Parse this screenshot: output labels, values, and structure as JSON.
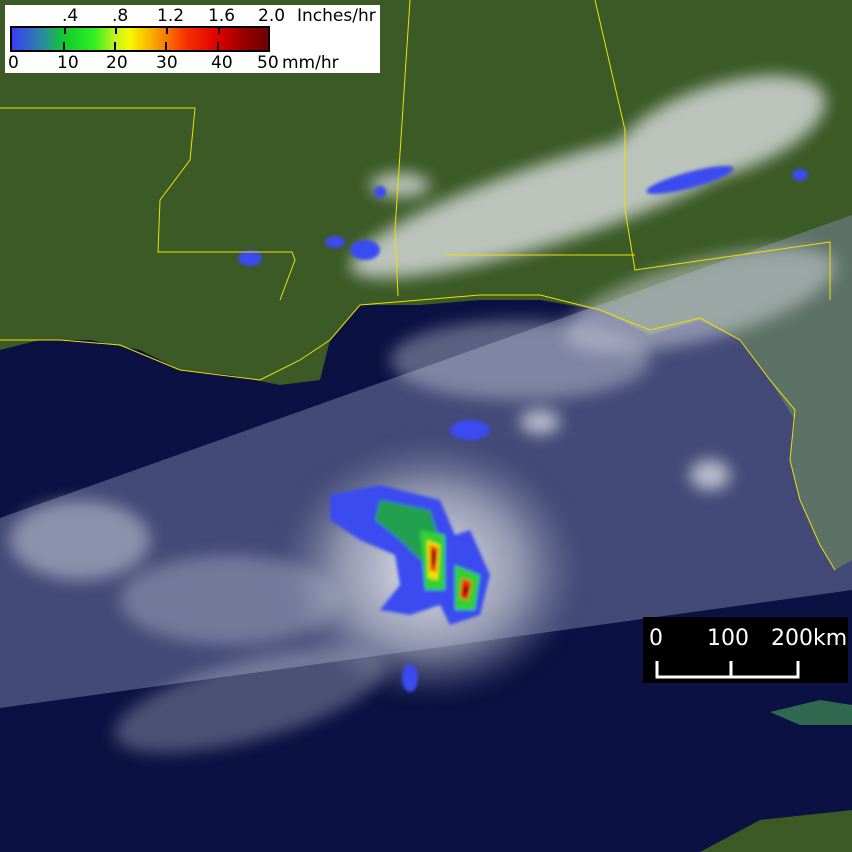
{
  "legend": {
    "inch_labels": [
      ".4",
      ".8",
      "1.2",
      "1.6",
      "2.0"
    ],
    "inch_unit": "Inches/hr",
    "mm_labels": [
      "0",
      "10",
      "20",
      "30",
      "40",
      "50"
    ],
    "mm_unit": "mm/hr",
    "color_stops": [
      "#3a3cf8",
      "#10c830",
      "#f8f800",
      "#f83000",
      "#700000"
    ]
  },
  "scale_bar": {
    "labels": [
      "0",
      "100",
      "200km"
    ]
  },
  "colors": {
    "land": "#3b5a26",
    "ocean": "#0b1142",
    "border": "#f0e000",
    "cloud": "#e6e8ee"
  }
}
